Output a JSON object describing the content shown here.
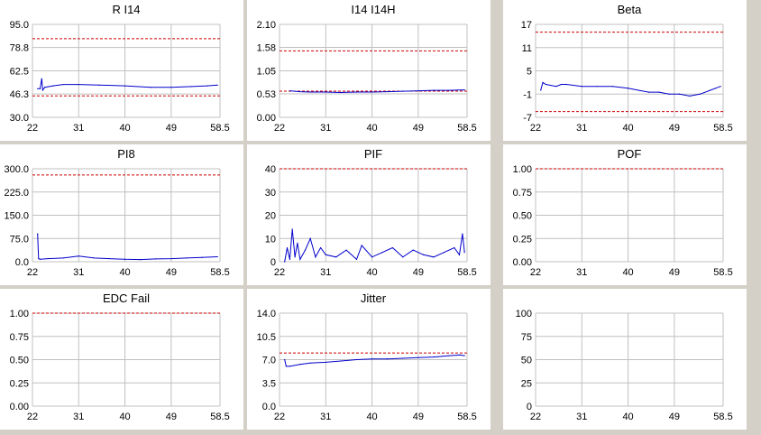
{
  "colors": {
    "background": "#d4d0c8",
    "panel": "#ffffff",
    "grid": "#c0c0c0",
    "series": "#0000cc",
    "limit": "#cc0000"
  },
  "chart_data": [
    {
      "type": "line",
      "title": "R I14",
      "xlabel": "",
      "ylabel": "",
      "grid": true,
      "xticks": [
        "22",
        "31",
        "40",
        "49",
        "58.5"
      ],
      "xtick_values": [
        22,
        31,
        40,
        49,
        58.5
      ],
      "yticks": [
        "95.0",
        "78.8",
        "62.5",
        "46.3",
        "30.0"
      ],
      "ytick_values": [
        95,
        78.8,
        62.5,
        46.3,
        30
      ],
      "xlim": [
        22,
        58.5
      ],
      "ylim": [
        30,
        95
      ],
      "limits": [
        85,
        45
      ],
      "series": [
        {
          "x": [
            23,
            23.5,
            23.8,
            24,
            24.4,
            26,
            28,
            31,
            35,
            40,
            45,
            49,
            53,
            56,
            58
          ],
          "values": [
            50,
            50,
            57,
            49,
            51,
            52,
            53,
            53,
            52.5,
            52,
            51,
            51,
            51.5,
            52,
            52.5
          ]
        }
      ]
    },
    {
      "type": "line",
      "title": "I14 I14H",
      "xlabel": "",
      "ylabel": "",
      "grid": true,
      "xticks": [
        "22",
        "31",
        "40",
        "49",
        "58.5"
      ],
      "xtick_values": [
        22,
        31,
        40,
        49,
        58.5
      ],
      "yticks": [
        "2.10",
        "1.58",
        "1.05",
        "0.53",
        "0.00"
      ],
      "ytick_values": [
        2.1,
        1.58,
        1.05,
        0.53,
        0
      ],
      "xlim": [
        22,
        58.5
      ],
      "ylim": [
        0,
        2.1
      ],
      "limits": [
        1.5,
        0.59
      ],
      "series": [
        {
          "x": [
            24,
            26,
            28,
            31,
            34,
            37,
            40,
            43,
            46,
            49,
            52,
            55,
            58
          ],
          "values": [
            0.6,
            0.58,
            0.57,
            0.57,
            0.56,
            0.57,
            0.57,
            0.58,
            0.59,
            0.6,
            0.61,
            0.61,
            0.62
          ]
        }
      ]
    },
    {
      "type": "line",
      "title": "Beta",
      "xlabel": "",
      "ylabel": "",
      "grid": true,
      "xticks": [
        "22",
        "31",
        "40",
        "49",
        "58.5"
      ],
      "xtick_values": [
        22,
        31,
        40,
        49,
        58.5
      ],
      "yticks": [
        "17",
        "11",
        "5",
        "-1",
        "-7"
      ],
      "ytick_values": [
        17,
        11,
        5,
        -1,
        -7
      ],
      "xlim": [
        22,
        58.5
      ],
      "ylim": [
        -7,
        17
      ],
      "limits": [
        15,
        -5.5
      ],
      "series": [
        {
          "x": [
            23,
            23.4,
            24,
            26,
            27,
            28,
            31,
            34,
            37,
            40,
            42,
            44,
            46,
            48,
            50,
            52,
            54,
            56,
            57,
            58
          ],
          "values": [
            0,
            2,
            1.5,
            1,
            1.5,
            1.5,
            1,
            1,
            1,
            0.5,
            0,
            -0.5,
            -0.5,
            -1,
            -1,
            -1.5,
            -1,
            0,
            0.5,
            1
          ]
        }
      ]
    },
    {
      "type": "line",
      "title": "PI8",
      "xlabel": "",
      "ylabel": "",
      "grid": true,
      "xticks": [
        "22",
        "31",
        "40",
        "49",
        "58.5"
      ],
      "xtick_values": [
        22,
        31,
        40,
        49,
        58.5
      ],
      "yticks": [
        "300.0",
        "225.0",
        "150.0",
        "75.0",
        "0.0"
      ],
      "ytick_values": [
        300,
        225,
        150,
        75,
        0
      ],
      "xlim": [
        22,
        58.5
      ],
      "ylim": [
        0,
        300
      ],
      "limits": [
        280
      ],
      "series": [
        {
          "x": [
            23,
            23.2,
            23.5,
            25,
            28,
            31,
            34,
            37,
            40,
            43,
            46,
            49,
            52,
            55,
            58
          ],
          "values": [
            90,
            10,
            8,
            10,
            12,
            18,
            12,
            10,
            8,
            7,
            9,
            10,
            12,
            14,
            16
          ]
        }
      ]
    },
    {
      "type": "line",
      "title": "PIF",
      "xlabel": "",
      "ylabel": "",
      "grid": true,
      "xticks": [
        "22",
        "31",
        "40",
        "49",
        "58.5"
      ],
      "xtick_values": [
        22,
        31,
        40,
        49,
        58.5
      ],
      "yticks": [
        "40",
        "30",
        "20",
        "10",
        "0"
      ],
      "ytick_values": [
        40,
        30,
        20,
        10,
        0
      ],
      "xlim": [
        22,
        58.5
      ],
      "ylim": [
        0,
        40
      ],
      "limits": [
        40
      ],
      "series": [
        {
          "x": [
            23,
            23.5,
            24,
            24.5,
            25,
            25.5,
            26,
            27,
            28,
            29,
            30,
            31,
            33,
            35,
            37,
            38,
            40,
            42,
            44,
            46,
            48,
            50,
            52,
            54,
            56,
            57,
            57.6,
            58
          ],
          "values": [
            0,
            6,
            1,
            14,
            2,
            8,
            1,
            5,
            10,
            2,
            6,
            3,
            2,
            5,
            1,
            7,
            2,
            4,
            6,
            2,
            5,
            3,
            2,
            4,
            6,
            3,
            12,
            4
          ]
        }
      ]
    },
    {
      "type": "line",
      "title": "POF",
      "xlabel": "",
      "ylabel": "",
      "grid": true,
      "xticks": [
        "22",
        "31",
        "40",
        "49",
        "58.5"
      ],
      "xtick_values": [
        22,
        31,
        40,
        49,
        58.5
      ],
      "yticks": [
        "1.00",
        "0.75",
        "0.50",
        "0.25",
        "0.00"
      ],
      "ytick_values": [
        1,
        0.75,
        0.5,
        0.25,
        0
      ],
      "xlim": [
        22,
        58.5
      ],
      "ylim": [
        0,
        1
      ],
      "limits": [
        1
      ],
      "series": []
    },
    {
      "type": "line",
      "title": "EDC Fail",
      "xlabel": "",
      "ylabel": "",
      "grid": true,
      "xticks": [
        "22",
        "31",
        "40",
        "49",
        "58.5"
      ],
      "xtick_values": [
        22,
        31,
        40,
        49,
        58.5
      ],
      "yticks": [
        "1.00",
        "0.75",
        "0.50",
        "0.25",
        "0.00"
      ],
      "ytick_values": [
        1,
        0.75,
        0.5,
        0.25,
        0
      ],
      "xlim": [
        22,
        58.5
      ],
      "ylim": [
        0,
        1
      ],
      "limits": [
        1
      ],
      "series": []
    },
    {
      "type": "line",
      "title": "Jitter",
      "xlabel": "",
      "ylabel": "",
      "grid": true,
      "xticks": [
        "22",
        "31",
        "40",
        "49",
        "58.5"
      ],
      "xtick_values": [
        22,
        31,
        40,
        49,
        58.5
      ],
      "yticks": [
        "14.0",
        "10.5",
        "7.0",
        "3.5",
        "0.0"
      ],
      "ytick_values": [
        14,
        10.5,
        7,
        3.5,
        0
      ],
      "xlim": [
        22,
        58.5
      ],
      "ylim": [
        0,
        14
      ],
      "limits": [
        8
      ],
      "series": [
        {
          "x": [
            23,
            23.3,
            24,
            26,
            28,
            31,
            34,
            37,
            40,
            43,
            46,
            49,
            52,
            55,
            57,
            58
          ],
          "values": [
            7,
            6,
            6,
            6.3,
            6.5,
            6.6,
            6.8,
            7,
            7.1,
            7.1,
            7.2,
            7.3,
            7.4,
            7.6,
            7.7,
            7.6
          ]
        }
      ]
    },
    {
      "type": "line",
      "title": "",
      "xlabel": "",
      "ylabel": "",
      "grid": true,
      "xticks": [
        "22",
        "31",
        "40",
        "49",
        "58.5"
      ],
      "xtick_values": [
        22,
        31,
        40,
        49,
        58.5
      ],
      "yticks": [
        "100",
        "75",
        "50",
        "25",
        "0"
      ],
      "ytick_values": [
        100,
        75,
        50,
        25,
        0
      ],
      "xlim": [
        22,
        58.5
      ],
      "ylim": [
        0,
        100
      ],
      "limits": [],
      "series": []
    }
  ]
}
